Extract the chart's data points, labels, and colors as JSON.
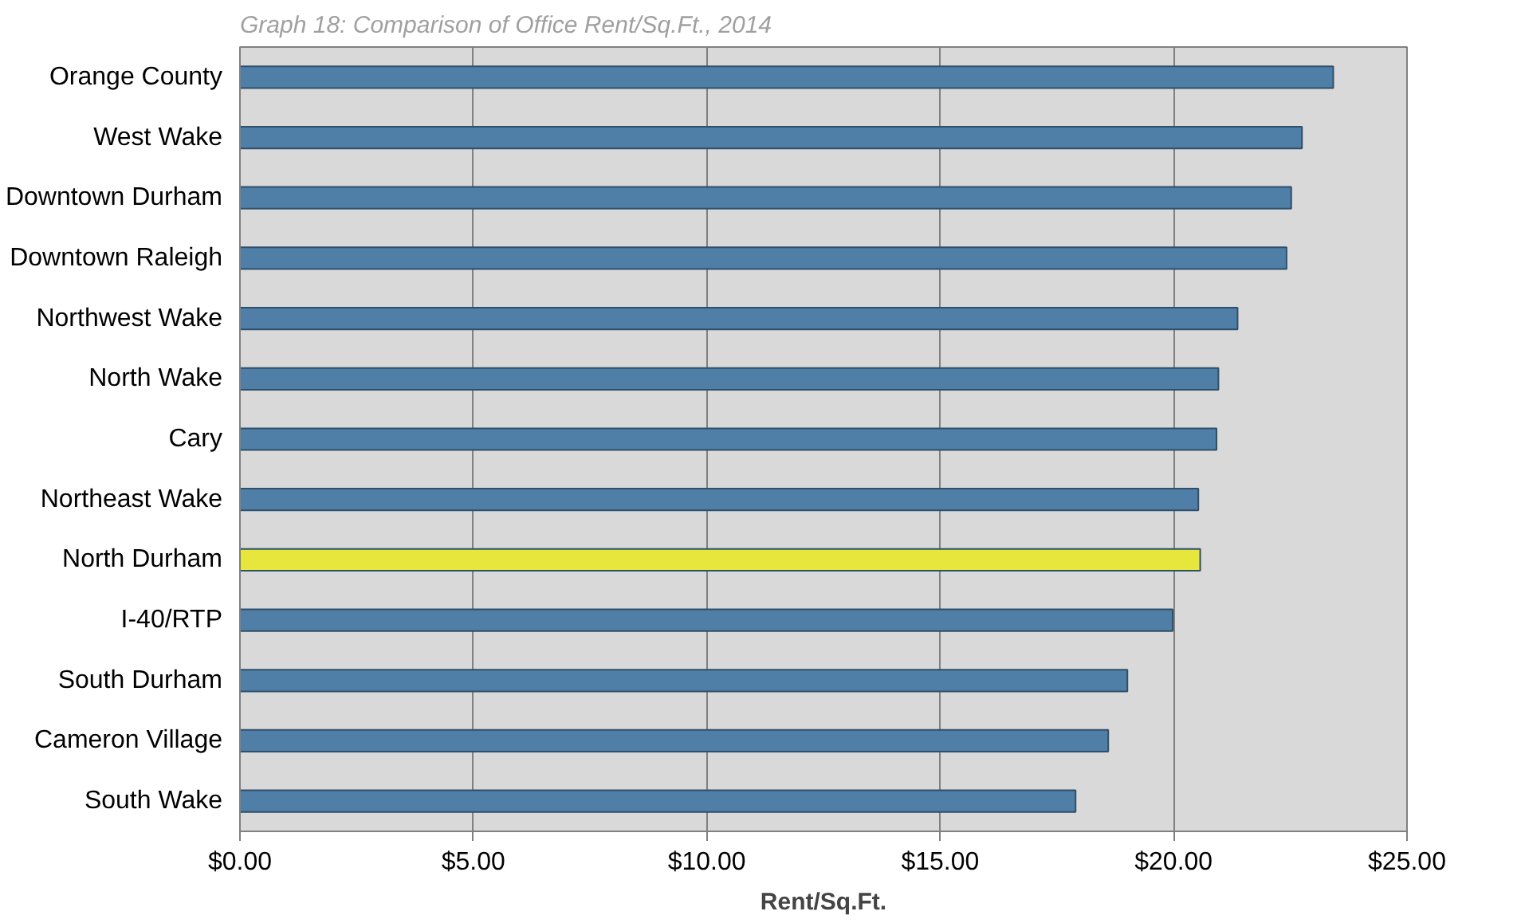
{
  "chart_data": {
    "type": "bar",
    "orientation": "horizontal",
    "title": "Graph 18: Comparison of Office Rent/Sq.Ft., 2014",
    "xlabel": "Rent/Sq.Ft.",
    "categories": [
      "Orange County",
      "West Wake",
      "Downtown Durham",
      "Downtown Raleigh",
      "Northwest Wake",
      "North Wake",
      "Cary",
      "Northeast Wake",
      "North Durham",
      "I-40/RTP",
      "South Durham",
      "Cameron Village",
      "South Wake"
    ],
    "values": [
      23.42,
      22.75,
      22.52,
      22.42,
      21.37,
      20.96,
      20.92,
      20.53,
      20.57,
      19.98,
      19.01,
      18.6,
      17.9
    ],
    "colors": [
      "#4f7fa6",
      "#4f7fa6",
      "#4f7fa6",
      "#4f7fa6",
      "#4f7fa6",
      "#4f7fa6",
      "#4f7fa6",
      "#4f7fa6",
      "#e6e63c",
      "#4f7fa6",
      "#4f7fa6",
      "#4f7fa6",
      "#4f7fa6"
    ],
    "xlim": [
      0,
      25
    ],
    "xticks": [
      {
        "value": 0,
        "label": "$0.00"
      },
      {
        "value": 5,
        "label": "$5.00"
      },
      {
        "value": 10,
        "label": "$10.00"
      },
      {
        "value": 15,
        "label": "$15.00"
      },
      {
        "value": 20,
        "label": "$20.00"
      },
      {
        "value": 25,
        "label": "$25.00"
      }
    ],
    "grid": "x"
  }
}
